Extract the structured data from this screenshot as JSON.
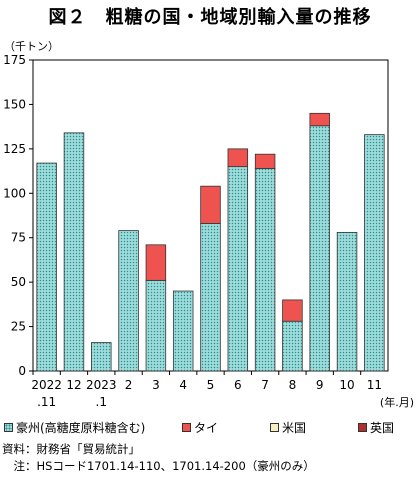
{
  "title": "図２　粗糖の国・地域別輸入量の推移",
  "unit_label": "（千トン）",
  "x_unit_label": "(年.月)",
  "legend": [
    {
      "label": "豪州(高糖度原料糖含む)",
      "color": "#9fdcdc",
      "pattern": "dots"
    },
    {
      "label": "タイ",
      "color": "#ef5350"
    },
    {
      "label": "米国",
      "color": "#f7efc0"
    },
    {
      "label": "英国",
      "color": "#b03030"
    }
  ],
  "notes": [
    "資料：財務省「貿易統計」",
    "　注：HSコード1701.14-110、1701.14-200（豪州のみ）"
  ],
  "chart_data": {
    "type": "bar",
    "stacked": true,
    "categories": [
      "2022\n.11",
      "12",
      "2023\n.1",
      "2",
      "3",
      "4",
      "5",
      "6",
      "7",
      "8",
      "9",
      "10",
      "11"
    ],
    "series": [
      {
        "name": "豪州(高糖度原料糖含む)",
        "color": "#9fdcdc",
        "values": [
          117,
          134,
          16,
          79,
          51,
          45,
          83,
          115,
          114,
          28,
          138,
          78,
          133
        ]
      },
      {
        "name": "タイ",
        "color": "#ef5350",
        "values": [
          0,
          0,
          0,
          0,
          20,
          0,
          21,
          10,
          8,
          12,
          7,
          0,
          0
        ]
      },
      {
        "name": "米国",
        "color": "#f7efc0",
        "values": [
          0,
          0,
          0,
          0,
          0,
          0,
          0,
          0,
          0,
          0,
          0,
          0,
          0
        ]
      },
      {
        "name": "英国",
        "color": "#b03030",
        "values": [
          0,
          0,
          0,
          0,
          0,
          0,
          0,
          0,
          0,
          0,
          0,
          0,
          0
        ]
      }
    ],
    "ylim": [
      0,
      175
    ],
    "yticks": [
      0,
      25,
      50,
      75,
      100,
      125,
      150,
      175
    ],
    "grid": false,
    "legend_position": "bottom"
  }
}
